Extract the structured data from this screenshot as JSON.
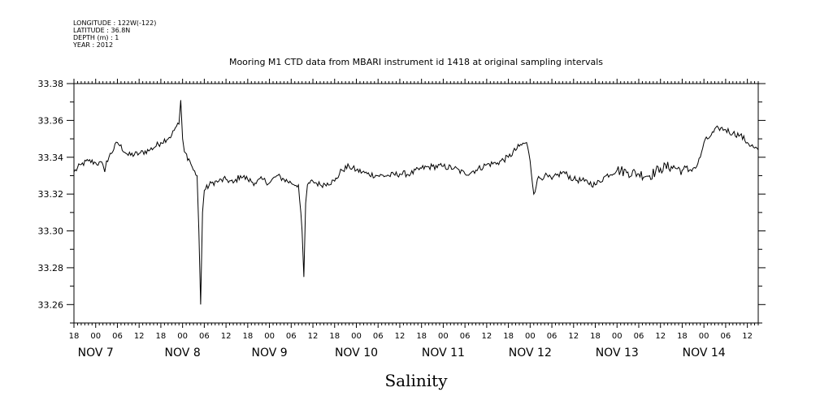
{
  "header": {
    "meta_lines": [
      "LONGITUDE : 122W(-122)",
      "LATITUDE : 36.8N",
      "DEPTH (m) : 1",
      "YEAR : 2012"
    ],
    "title": "Mooring M1 CTD data from MBARI instrument id 1418 at original sampling intervals"
  },
  "chart_data": {
    "type": "line",
    "title": "Mooring M1 CTD data from MBARI instrument id 1418 at original sampling intervals",
    "xlabel": "Salinity",
    "ylabel": "",
    "ylim": [
      33.25,
      33.38
    ],
    "yticks": [
      33.26,
      33.28,
      33.3,
      33.32,
      33.34,
      33.36,
      33.38
    ],
    "ytick_labels": [
      "33.26",
      "33.28",
      "33.30",
      "33.32",
      "33.34",
      "33.36",
      "33.38"
    ],
    "xlim": [
      "2012-11-06T18:00",
      "2012-11-14T15:00"
    ],
    "x_hour_ticks": [
      "18",
      "00",
      "06",
      "12",
      "18",
      "00",
      "06",
      "12",
      "18",
      "00",
      "06",
      "12",
      "18",
      "00",
      "06",
      "12",
      "18",
      "00",
      "06",
      "12",
      "18",
      "00",
      "06",
      "12",
      "18",
      "00",
      "06",
      "12",
      "18",
      "00",
      "06",
      "12"
    ],
    "x_day_labels": [
      "NOV  7",
      "NOV  8",
      "NOV  9",
      "NOV 10",
      "NOV 11",
      "NOV 12",
      "NOV 13",
      "NOV 14"
    ],
    "grid": false,
    "legend": "none",
    "line_color": "#000000",
    "series": [
      {
        "x": [
          "11-06 18:00",
          "11-06 20:00",
          "11-06 22:00",
          "11-07 00:00",
          "11-07 02:00",
          "11-07 02:30",
          "11-07 03:00",
          "11-07 06:00",
          "11-07 09:00",
          "11-07 12:00",
          "11-07 15:00",
          "11-07 18:00",
          "11-07 21:00",
          "11-07 22:00",
          "11-07 23:00",
          "11-07 23:30",
          "11-08 00:00",
          "11-08 00:30",
          "11-08 02:00",
          "11-08 03:00",
          "11-08 04:00",
          "11-08 04:30",
          "11-08 05:00",
          "11-08 05:30",
          "11-08 06:00",
          "11-08 08:00",
          "11-08 10:00",
          "11-08 12:00",
          "11-08 14:00",
          "11-08 16:00",
          "11-08 18:00",
          "11-08 20:00",
          "11-08 22:00",
          "11-09 00:00",
          "11-09 02:00",
          "11-09 04:00",
          "11-09 06:00",
          "11-09 08:00",
          "11-09 09:00",
          "11-09 09:30",
          "11-09 10:00",
          "11-09 10:30",
          "11-09 12:00",
          "11-09 14:00",
          "11-09 16:00",
          "11-09 18:00",
          "11-09 20:00",
          "11-09 22:00",
          "11-10 00:00",
          "11-10 03:00",
          "11-10 06:00",
          "11-10 09:00",
          "11-10 12:00",
          "11-10 15:00",
          "11-10 18:00",
          "11-10 21:00",
          "11-11 00:00",
          "11-11 03:00",
          "11-11 06:00",
          "11-11 09:00",
          "11-11 12:00",
          "11-11 15:00",
          "11-11 18:00",
          "11-11 21:00",
          "11-11 23:00",
          "11-12 00:00",
          "11-12 01:00",
          "11-12 02:00",
          "11-12 04:00",
          "11-12 06:00",
          "11-12 09:00",
          "11-12 12:00",
          "11-12 15:00",
          "11-12 18:00",
          "11-12 21:00",
          "11-13 00:00",
          "11-13 03:00",
          "11-13 06:00",
          "11-13 09:00",
          "11-13 12:00",
          "11-13 15:00",
          "11-13 18:00",
          "11-13 20:00",
          "11-13 21:00",
          "11-13 22:00",
          "11-13 23:00",
          "11-14 00:00",
          "11-14 02:00",
          "11-14 04:00",
          "11-14 06:00",
          "11-14 08:00",
          "11-14 10:00",
          "11-14 12:00",
          "11-14 14:00",
          "11-14 15:00"
        ],
        "values": [
          33.332,
          33.336,
          33.338,
          33.337,
          33.336,
          33.332,
          33.338,
          33.348,
          33.341,
          33.342,
          33.344,
          33.348,
          33.352,
          33.356,
          33.358,
          33.371,
          33.35,
          33.343,
          33.338,
          33.333,
          33.33,
          33.3,
          33.26,
          33.31,
          33.322,
          33.326,
          33.327,
          33.328,
          33.326,
          33.33,
          33.328,
          33.326,
          33.328,
          33.326,
          33.33,
          33.328,
          33.326,
          33.325,
          33.3,
          33.275,
          33.315,
          33.325,
          33.327,
          33.325,
          33.326,
          33.327,
          33.333,
          33.335,
          33.333,
          33.331,
          33.33,
          33.33,
          33.331,
          33.331,
          33.334,
          33.335,
          33.335,
          33.334,
          33.331,
          33.333,
          33.336,
          33.337,
          33.34,
          33.346,
          33.348,
          33.338,
          33.32,
          33.328,
          33.33,
          33.328,
          33.332,
          33.328,
          33.327,
          33.325,
          33.33,
          33.333,
          33.332,
          33.331,
          33.33,
          33.334,
          33.335,
          33.333,
          33.333,
          33.334,
          33.335,
          33.34,
          33.348,
          33.352,
          33.356,
          33.355,
          33.353,
          33.352,
          33.348,
          33.345,
          33.344
        ]
      }
    ]
  }
}
